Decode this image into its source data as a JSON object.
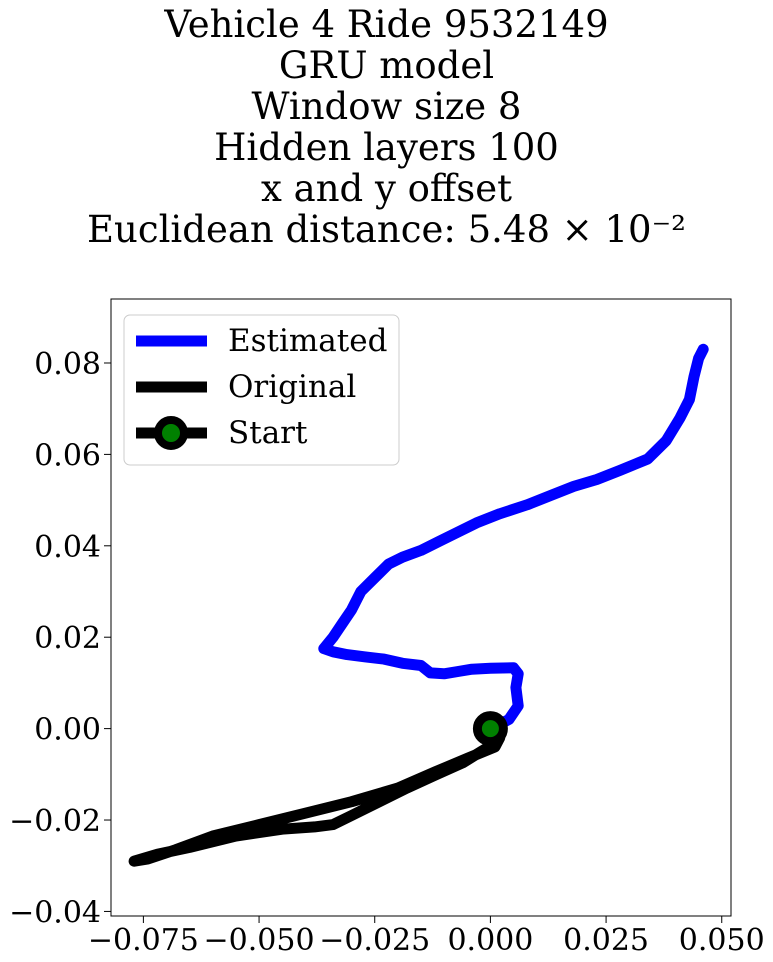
{
  "chart_data": {
    "type": "line",
    "title_lines": [
      "Vehicle 4 Ride 9532149",
      "GRU model",
      "Window size 8",
      "Hidden layers 100",
      "x and y offset",
      "Euclidean distance: 5.48 × 10⁻²"
    ],
    "xlabel": "",
    "ylabel": "",
    "xlim": [
      -0.082,
      0.052
    ],
    "ylim": [
      -0.041,
      0.094
    ],
    "xticks": [
      -0.075,
      -0.05,
      -0.025,
      0.0,
      0.025,
      0.05
    ],
    "xtick_labels": [
      "−0.075",
      "−0.050",
      "−0.025",
      "0.000",
      "0.025",
      "0.050"
    ],
    "yticks": [
      -0.04,
      -0.02,
      0.0,
      0.02,
      0.04,
      0.06,
      0.08
    ],
    "ytick_labels": [
      "−0.04",
      "−0.02",
      "0.00",
      "0.02",
      "0.04",
      "0.06",
      "0.08"
    ],
    "grid": false,
    "legend_placement": "top-left",
    "series": [
      {
        "name": "Estimated",
        "color": "#0000ff",
        "points": [
          [
            0.0,
            0.0
          ],
          [
            0.004,
            0.002
          ],
          [
            0.006,
            0.005
          ],
          [
            0.0055,
            0.009
          ],
          [
            0.006,
            0.012
          ],
          [
            0.005,
            0.0133
          ],
          [
            0.0,
            0.0132
          ],
          [
            -0.004,
            0.013
          ],
          [
            -0.007,
            0.0125
          ],
          [
            -0.01,
            0.012
          ],
          [
            -0.013,
            0.0122
          ],
          [
            -0.015,
            0.0138
          ],
          [
            -0.019,
            0.0143
          ],
          [
            -0.023,
            0.0152
          ],
          [
            -0.027,
            0.0157
          ],
          [
            -0.031,
            0.0162
          ],
          [
            -0.034,
            0.0168
          ],
          [
            -0.036,
            0.0175
          ],
          [
            -0.034,
            0.02
          ],
          [
            -0.032,
            0.023
          ],
          [
            -0.03,
            0.026
          ],
          [
            -0.028,
            0.03
          ],
          [
            -0.025,
            0.033
          ],
          [
            -0.022,
            0.036
          ],
          [
            -0.019,
            0.0375
          ],
          [
            -0.015,
            0.039
          ],
          [
            -0.011,
            0.041
          ],
          [
            -0.007,
            0.043
          ],
          [
            -0.003,
            0.045
          ],
          [
            0.002,
            0.047
          ],
          [
            0.008,
            0.049
          ],
          [
            0.013,
            0.051
          ],
          [
            0.018,
            0.053
          ],
          [
            0.023,
            0.0545
          ],
          [
            0.028,
            0.0565
          ],
          [
            0.034,
            0.059
          ],
          [
            0.038,
            0.063
          ],
          [
            0.041,
            0.068
          ],
          [
            0.043,
            0.072
          ],
          [
            0.044,
            0.077
          ],
          [
            0.045,
            0.081
          ],
          [
            0.046,
            0.083
          ]
        ]
      },
      {
        "name": "Original",
        "color": "#000000",
        "points": [
          [
            0.0,
            0.0
          ],
          [
            0.002,
            -0.002
          ],
          [
            0.001,
            -0.004
          ],
          [
            -0.005,
            -0.0065
          ],
          [
            -0.012,
            -0.0095
          ],
          [
            -0.02,
            -0.013
          ],
          [
            -0.03,
            -0.016
          ],
          [
            -0.04,
            -0.0185
          ],
          [
            -0.05,
            -0.021
          ],
          [
            -0.06,
            -0.0235
          ],
          [
            -0.068,
            -0.0265
          ],
          [
            -0.074,
            -0.0285
          ],
          [
            -0.077,
            -0.029
          ],
          [
            -0.072,
            -0.0275
          ],
          [
            -0.065,
            -0.026
          ],
          [
            -0.055,
            -0.0235
          ],
          [
            -0.045,
            -0.022
          ],
          [
            -0.038,
            -0.0215
          ],
          [
            -0.034,
            -0.021
          ],
          [
            -0.03,
            -0.019
          ],
          [
            -0.024,
            -0.016
          ],
          [
            -0.018,
            -0.013
          ],
          [
            -0.012,
            -0.0102
          ],
          [
            -0.006,
            -0.0075
          ],
          [
            -0.002,
            -0.005
          ],
          [
            0.0005,
            -0.0035
          ],
          [
            0.0015,
            -0.002
          ]
        ]
      }
    ],
    "start_point": {
      "name": "Start",
      "x": 0.0,
      "y": 0.0,
      "color": "#008000",
      "edge_color": "#000000"
    }
  }
}
